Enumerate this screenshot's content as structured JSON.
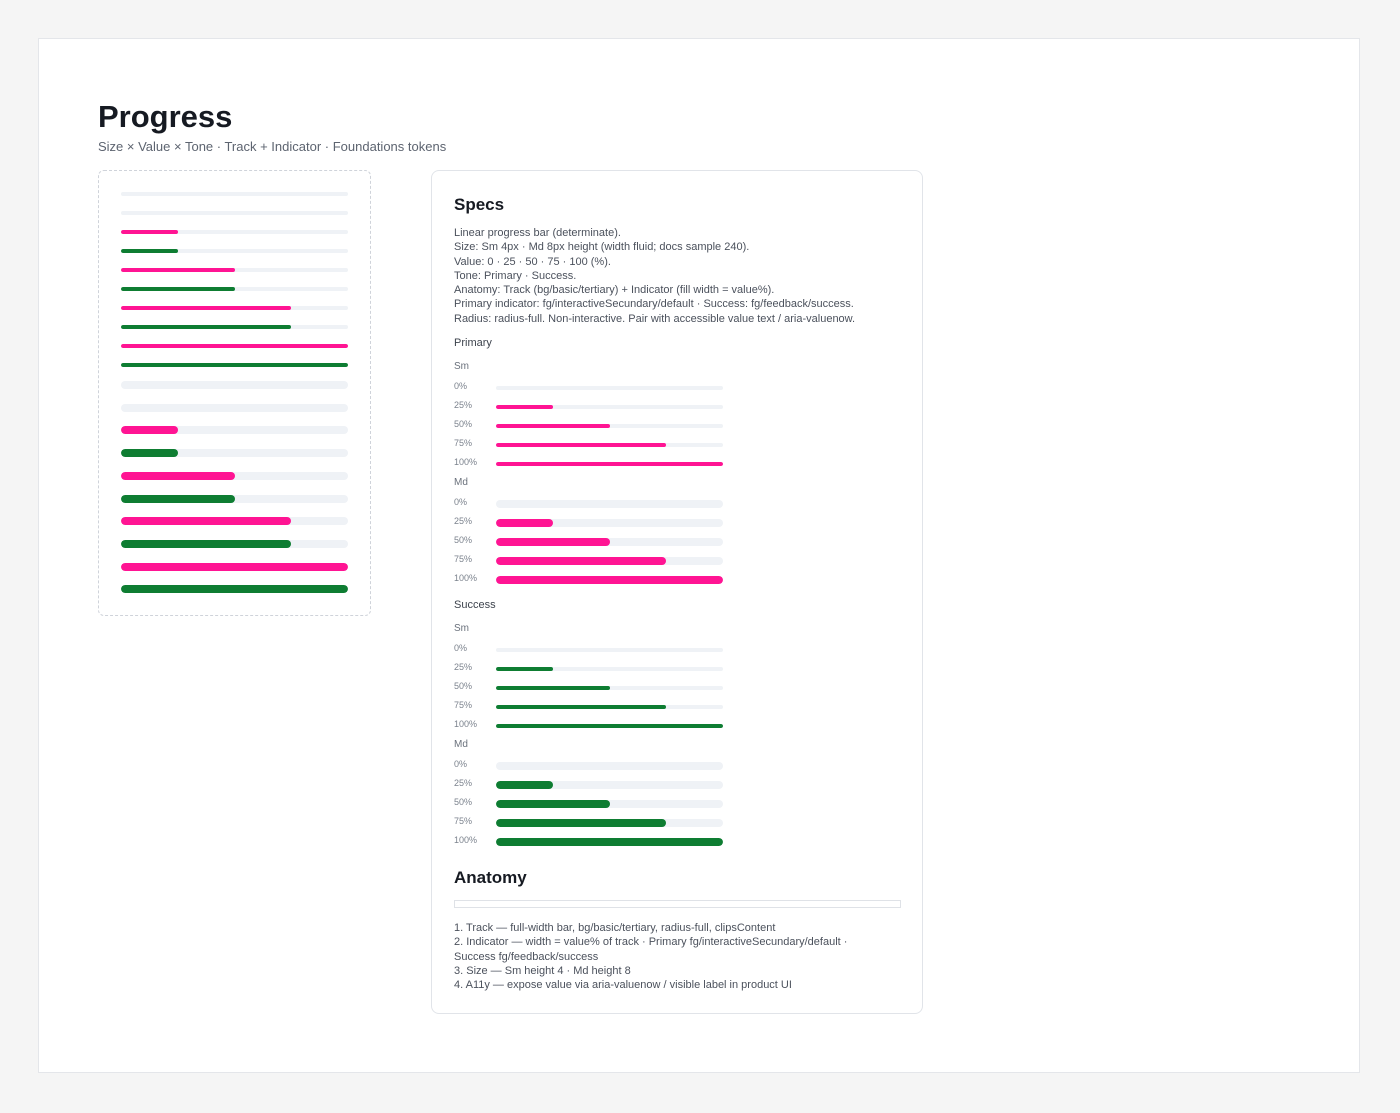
{
  "header": {
    "title": "Progress",
    "subtitle": "Size × Value × Tone · Track + Indicator · Foundations tokens"
  },
  "colors": {
    "primary": "#ff1493",
    "success": "#0e7d32",
    "track": "#eff2f6"
  },
  "sample_bars": [
    {
      "size": "sm",
      "tone": "primary",
      "value": 0
    },
    {
      "size": "sm",
      "tone": "success",
      "value": 0
    },
    {
      "size": "sm",
      "tone": "primary",
      "value": 25
    },
    {
      "size": "sm",
      "tone": "success",
      "value": 25
    },
    {
      "size": "sm",
      "tone": "primary",
      "value": 50
    },
    {
      "size": "sm",
      "tone": "success",
      "value": 50
    },
    {
      "size": "sm",
      "tone": "primary",
      "value": 75
    },
    {
      "size": "sm",
      "tone": "success",
      "value": 75
    },
    {
      "size": "sm",
      "tone": "primary",
      "value": 100
    },
    {
      "size": "sm",
      "tone": "success",
      "value": 100
    },
    {
      "size": "md",
      "tone": "primary",
      "value": 0
    },
    {
      "size": "md",
      "tone": "success",
      "value": 0
    },
    {
      "size": "md",
      "tone": "primary",
      "value": 25
    },
    {
      "size": "md",
      "tone": "success",
      "value": 25
    },
    {
      "size": "md",
      "tone": "primary",
      "value": 50
    },
    {
      "size": "md",
      "tone": "success",
      "value": 50
    },
    {
      "size": "md",
      "tone": "primary",
      "value": 75
    },
    {
      "size": "md",
      "tone": "success",
      "value": 75
    },
    {
      "size": "md",
      "tone": "primary",
      "value": 100
    },
    {
      "size": "md",
      "tone": "success",
      "value": 100
    }
  ],
  "specs": {
    "title": "Specs",
    "lines": [
      "Linear progress bar (determinate).",
      "Size: Sm 4px · Md 8px height (width fluid; docs sample 240).",
      "Value: 0 · 25 · 50 · 75 · 100 (%).",
      "Tone: Primary · Success.",
      "Anatomy: Track (bg/basic/tertiary) + Indicator (fill width = value%).",
      "Primary indicator: fg/interactiveSecundary/default · Success: fg/feedback/success.",
      "Radius: radius-full. Non-interactive. Pair with accessible value text / aria-valuenow."
    ],
    "tones": [
      {
        "label": "Primary",
        "tone": "primary",
        "sizes": [
          {
            "label": "Sm",
            "size": "sm",
            "rows": [
              {
                "label": "0%",
                "value": 0
              },
              {
                "label": "25%",
                "value": 25
              },
              {
                "label": "50%",
                "value": 50
              },
              {
                "label": "75%",
                "value": 75
              },
              {
                "label": "100%",
                "value": 100
              }
            ]
          },
          {
            "label": "Md",
            "size": "md",
            "rows": [
              {
                "label": "0%",
                "value": 0
              },
              {
                "label": "25%",
                "value": 25
              },
              {
                "label": "50%",
                "value": 50
              },
              {
                "label": "75%",
                "value": 75
              },
              {
                "label": "100%",
                "value": 100
              }
            ]
          }
        ]
      },
      {
        "label": "Success",
        "tone": "success",
        "sizes": [
          {
            "label": "Sm",
            "size": "sm",
            "rows": [
              {
                "label": "0%",
                "value": 0
              },
              {
                "label": "25%",
                "value": 25
              },
              {
                "label": "50%",
                "value": 50
              },
              {
                "label": "75%",
                "value": 75
              },
              {
                "label": "100%",
                "value": 100
              }
            ]
          },
          {
            "label": "Md",
            "size": "md",
            "rows": [
              {
                "label": "0%",
                "value": 0
              },
              {
                "label": "25%",
                "value": 25
              },
              {
                "label": "50%",
                "value": 50
              },
              {
                "label": "75%",
                "value": 75
              },
              {
                "label": "100%",
                "value": 100
              }
            ]
          }
        ]
      }
    ]
  },
  "anatomy": {
    "title": "Anatomy",
    "lines": [
      "1. Track — full-width bar, bg/basic/tertiary, radius-full, clipsContent",
      "2. Indicator — width = value% of track · Primary fg/interactiveSecundary/default ·",
      "Success fg/feedback/success",
      "3. Size — Sm height 4 · Md height 8",
      "4. A11y — expose value via aria-valuenow / visible label in product UI"
    ]
  }
}
